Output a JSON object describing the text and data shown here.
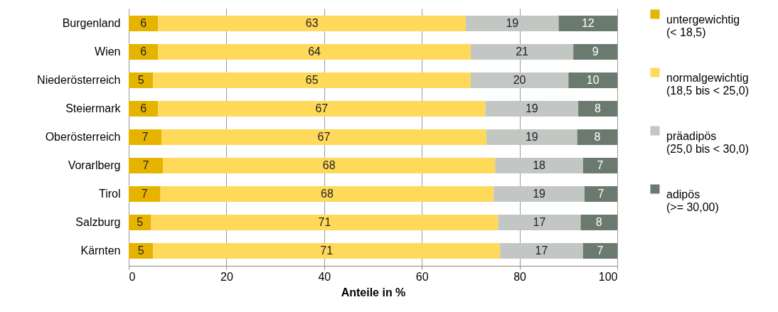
{
  "chart_data": {
    "type": "bar",
    "orientation": "horizontal",
    "stacked": true,
    "xlabel": "Anteile in %",
    "categories": [
      "Burgenland",
      "Wien",
      "Niederösterreich",
      "Steiermark",
      "Oberösterreich",
      "Vorarlberg",
      "Tirol",
      "Salzburg",
      "Kärnten"
    ],
    "series": [
      {
        "name": "untergewichtig (< 18,5)",
        "color": "#e6b400",
        "values": [
          6,
          6,
          5,
          6,
          6.7,
          7,
          6.5,
          4.6,
          5
        ],
        "value_labels": [
          "6",
          "6",
          "5",
          "6",
          "7",
          "7",
          "7",
          "5",
          "5"
        ]
      },
      {
        "name": "normalgewichtig (18,5 bis < 25,0)",
        "color": "#ffd95a",
        "values": [
          63,
          64,
          65,
          67,
          66.5,
          68,
          68.2,
          71,
          71
        ],
        "value_labels": [
          "63",
          "64",
          "65",
          "67",
          "67",
          "68",
          "68",
          "71",
          "71"
        ]
      },
      {
        "name": "präadipös (25,0 bis < 30,0)",
        "color": "#c3c7c4",
        "values": [
          19,
          21,
          20,
          19,
          18.6,
          18,
          18.6,
          16.9,
          17
        ],
        "value_labels": [
          "19",
          "21",
          "20",
          "19",
          "19",
          "18",
          "19",
          "17",
          "17"
        ]
      },
      {
        "name": "adipös (>= 30,00)",
        "color": "#6b7a6e",
        "values": [
          12,
          9,
          10,
          8,
          8.2,
          7,
          6.7,
          7.5,
          7
        ],
        "value_labels": [
          "12",
          "9",
          "10",
          "8",
          "8",
          "7",
          "7",
          "8",
          "7"
        ]
      }
    ],
    "xlim": [
      0,
      100
    ],
    "xticks": [
      0,
      20,
      40,
      60,
      80,
      100
    ],
    "grid": "x",
    "legend": "right"
  }
}
